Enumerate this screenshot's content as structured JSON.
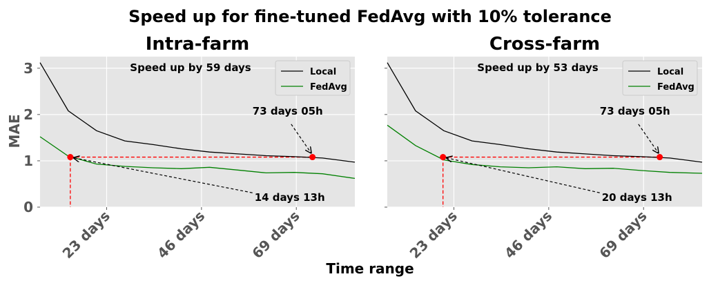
{
  "figure": {
    "suptitle": "Speed up for fine-tuned FedAvg with 10% tolerance",
    "xlabel": "Time range",
    "ylabel": "MAE"
  },
  "chart_data": [
    {
      "type": "line",
      "title": "Intra-farm",
      "ylim": [
        0,
        3.25
      ],
      "xlim": [
        0,
        78
      ],
      "grid": true,
      "legend_placement": "top-right",
      "xticks": [
        {
          "value": 16.5,
          "label": "23 days"
        },
        {
          "value": 40,
          "label": "46 days"
        },
        {
          "value": 63.5,
          "label": "69 days"
        }
      ],
      "yticks": [
        0,
        1,
        2,
        3
      ],
      "series": [
        {
          "name": "Local",
          "color": "#000000",
          "x": [
            0,
            7,
            14,
            21,
            28,
            35,
            42,
            49,
            56,
            63,
            70,
            78
          ],
          "y": [
            3.12,
            2.08,
            1.65,
            1.43,
            1.35,
            1.26,
            1.19,
            1.15,
            1.11,
            1.09,
            1.06,
            0.97
          ]
        },
        {
          "name": "FedAvg",
          "color": "#008000",
          "x": [
            0,
            7,
            14,
            21,
            28,
            35,
            42,
            49,
            56,
            63,
            70,
            78
          ],
          "y": [
            1.52,
            1.1,
            0.93,
            0.88,
            0.85,
            0.83,
            0.86,
            0.8,
            0.74,
            0.75,
            0.72,
            0.62
          ]
        }
      ],
      "marker_points": [
        {
          "x": 7.5,
          "y": 1.08
        },
        {
          "x": 67.5,
          "y": 1.08
        }
      ],
      "annotations": [
        {
          "text": "Speed up by 59 days"
        },
        {
          "text": "73 days 05h",
          "x": 60,
          "y": 2.0
        },
        {
          "text": "14 days 13h",
          "x": 54,
          "y": 0.22
        }
      ]
    },
    {
      "type": "line",
      "title": "Cross-farm",
      "ylim": [
        0,
        3.25
      ],
      "xlim": [
        0,
        78
      ],
      "grid": true,
      "legend_placement": "top-right",
      "xticks": [
        {
          "value": 16.5,
          "label": "23 days"
        },
        {
          "value": 40,
          "label": "46 days"
        },
        {
          "value": 63.5,
          "label": "69 days"
        }
      ],
      "yticks": [
        0,
        1,
        2,
        3
      ],
      "series": [
        {
          "name": "Local",
          "color": "#000000",
          "x": [
            0,
            7,
            14,
            21,
            28,
            35,
            42,
            49,
            56,
            63,
            70,
            78
          ],
          "y": [
            3.12,
            2.08,
            1.65,
            1.43,
            1.35,
            1.26,
            1.19,
            1.15,
            1.11,
            1.09,
            1.06,
            0.97
          ]
        },
        {
          "name": "FedAvg",
          "color": "#008000",
          "x": [
            0,
            7,
            14,
            21,
            28,
            35,
            42,
            49,
            56,
            63,
            70,
            78
          ],
          "y": [
            1.77,
            1.33,
            1.02,
            0.92,
            0.87,
            0.85,
            0.87,
            0.83,
            0.84,
            0.79,
            0.75,
            0.73
          ]
        }
      ],
      "marker_points": [
        {
          "x": 13.8,
          "y": 1.08
        },
        {
          "x": 67.5,
          "y": 1.08
        }
      ],
      "annotations": [
        {
          "text": "Speed up by 53 days"
        },
        {
          "text": "73 days 05h",
          "x": 60,
          "y": 2.0
        },
        {
          "text": "20 days 13h",
          "x": 54,
          "y": 0.22
        }
      ]
    }
  ]
}
